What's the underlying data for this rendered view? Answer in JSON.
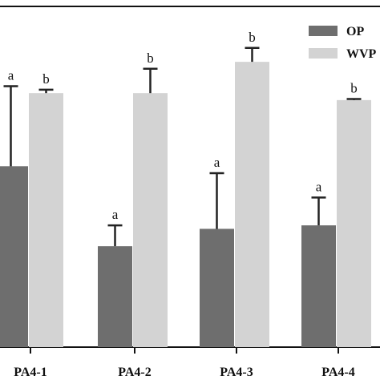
{
  "chart_data": {
    "type": "bar",
    "title": "",
    "xlabel": "",
    "ylabel": "",
    "categories": [
      "PA4-1",
      "PA4-2",
      "PA4-3",
      "PA4-4"
    ],
    "ylim": [
      0,
      100
    ],
    "grid": false,
    "legend_position": "top-right",
    "series": [
      {
        "name": "OP",
        "color": "#6e6e6e",
        "values": [
          52,
          29,
          34,
          35
        ],
        "errors": [
          23,
          6,
          16,
          8
        ],
        "significance": [
          "a",
          "a",
          "a",
          "a"
        ]
      },
      {
        "name": "WVP",
        "color": "#d3d3d3",
        "values": [
          73,
          73,
          82,
          71
        ],
        "errors": [
          1,
          7,
          4,
          0.3
        ],
        "significance": [
          "b",
          "b",
          "b",
          "b"
        ]
      }
    ],
    "legend_entries": [
      "OP",
      "WVP"
    ]
  }
}
